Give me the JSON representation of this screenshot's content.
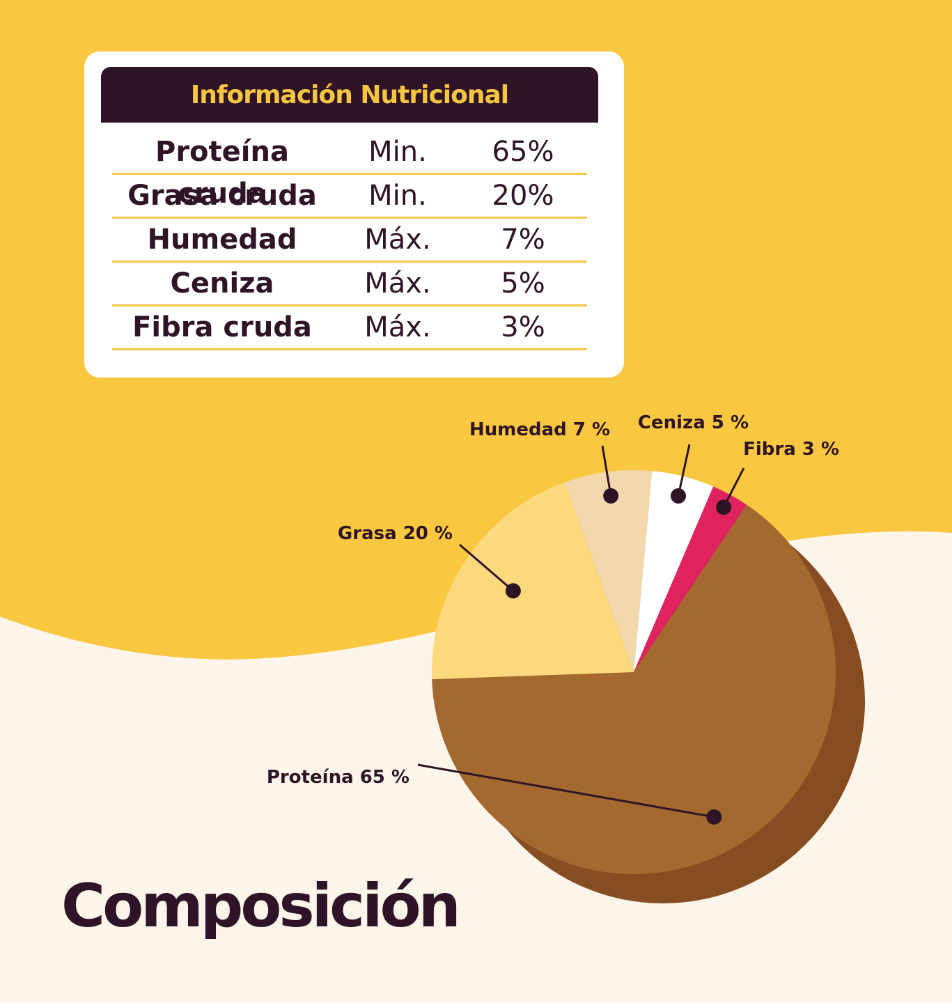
{
  "colors": {
    "background_top": "#F9C840",
    "background_bottom": "#FDF5EA",
    "dark": "#2E1426",
    "accent": "#F6C542",
    "slices": [
      "#A4692F",
      "#FDD97E",
      "#F2D8AA",
      "#FFFFFF",
      "#E0225F"
    ],
    "depth": "#864C22"
  },
  "table": {
    "title": "Información Nutricional",
    "rows": [
      {
        "name": "Proteína cruda",
        "type": "Min.",
        "value": "65%"
      },
      {
        "name": "Grasa cruda",
        "type": "Min.",
        "value": "20%"
      },
      {
        "name": "Humedad",
        "type": "Máx.",
        "value": "7%"
      },
      {
        "name": "Ceniza",
        "type": "Máx.",
        "value": "5%"
      },
      {
        "name": "Fibra cruda",
        "type": "Máx.",
        "value": "3%"
      }
    ]
  },
  "heading": "Composición",
  "chart_data": {
    "type": "pie",
    "slices": [
      {
        "label": "Proteína",
        "value_text": "65 %",
        "value": 65
      },
      {
        "label": "Grasa",
        "value_text": "20 %",
        "value": 20
      },
      {
        "label": "Humedad",
        "value_text": "7 %",
        "value": 7
      },
      {
        "label": "Ceniza",
        "value_text": "5 %",
        "value": 5
      },
      {
        "label": "Fibra",
        "value_text": "3 %",
        "value": 3
      }
    ]
  }
}
